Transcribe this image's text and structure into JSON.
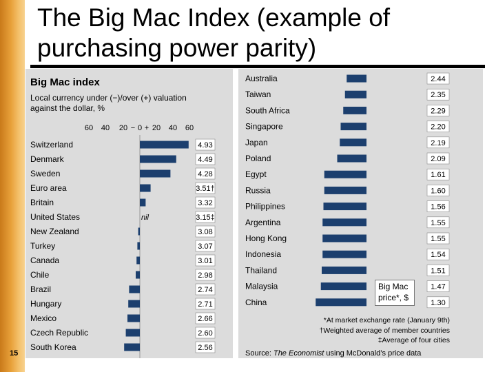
{
  "slide": {
    "title_line1": "The Big Mac Index (example of",
    "title_line2": "purchasing power parity)",
    "page_number": "15"
  },
  "chart_data": {
    "type": "bar",
    "title": "Big Mac index",
    "subtitle": "Local currency under (−)/over (+) valuation against the dollar, %",
    "axis_ticks": [
      "60",
      "40",
      "20",
      "−",
      "0",
      "+",
      "20",
      "40",
      "60"
    ],
    "xlim": [
      -60,
      60
    ],
    "nil_label": "nil",
    "callout": "Big Mac price*, $",
    "colors": {
      "bar": "#1c3f6e",
      "panel": "#dcdcdc",
      "price_box": "#ffffff"
    },
    "left_countries": [
      {
        "name": "Switzerland",
        "valuation": 59,
        "price": "4.93"
      },
      {
        "name": "Denmark",
        "valuation": 44,
        "price": "4.49"
      },
      {
        "name": "Sweden",
        "valuation": 37,
        "price": "4.28"
      },
      {
        "name": "Euro area",
        "valuation": 13,
        "price": "3.51†"
      },
      {
        "name": "Britain",
        "valuation": 7,
        "price": "3.32"
      },
      {
        "name": "United States",
        "valuation": 0,
        "price": "3.15‡"
      },
      {
        "name": "New Zealand",
        "valuation": -2,
        "price": "3.08"
      },
      {
        "name": "Turkey",
        "valuation": -3,
        "price": "3.07"
      },
      {
        "name": "Canada",
        "valuation": -4,
        "price": "3.01"
      },
      {
        "name": "Chile",
        "valuation": -5,
        "price": "2.98"
      },
      {
        "name": "Brazil",
        "valuation": -13,
        "price": "2.74"
      },
      {
        "name": "Hungary",
        "valuation": -14,
        "price": "2.71"
      },
      {
        "name": "Mexico",
        "valuation": -15,
        "price": "2.66"
      },
      {
        "name": "Czech Republic",
        "valuation": -17,
        "price": "2.60"
      },
      {
        "name": "South Korea",
        "valuation": -19,
        "price": "2.56"
      }
    ],
    "right_countries": [
      {
        "name": "Australia",
        "valuation": -23,
        "price": "2.44"
      },
      {
        "name": "Taiwan",
        "valuation": -25,
        "price": "2.35"
      },
      {
        "name": "South Africa",
        "valuation": -27,
        "price": "2.29"
      },
      {
        "name": "Singapore",
        "valuation": -30,
        "price": "2.20"
      },
      {
        "name": "Japan",
        "valuation": -31,
        "price": "2.19"
      },
      {
        "name": "Poland",
        "valuation": -34,
        "price": "2.09"
      },
      {
        "name": "Egypt",
        "valuation": -49,
        "price": "1.61"
      },
      {
        "name": "Russia",
        "valuation": -49,
        "price": "1.60"
      },
      {
        "name": "Philippines",
        "valuation": -50,
        "price": "1.56"
      },
      {
        "name": "Argentina",
        "valuation": -51,
        "price": "1.55"
      },
      {
        "name": "Hong Kong",
        "valuation": -51,
        "price": "1.55"
      },
      {
        "name": "Indonesia",
        "valuation": -51,
        "price": "1.54"
      },
      {
        "name": "Thailand",
        "valuation": -52,
        "price": "1.51"
      },
      {
        "name": "Malaysia",
        "valuation": -53,
        "price": "1.47"
      },
      {
        "name": "China",
        "valuation": -59,
        "price": "1.30"
      }
    ],
    "footnotes": [
      "*At market exchange rate (January 9th)",
      "†Weighted average of member countries",
      "‡Average of four cities"
    ],
    "source_prefix": "Source: ",
    "source_name": "The Economist",
    "source_suffix": " using McDonald’s price data"
  }
}
